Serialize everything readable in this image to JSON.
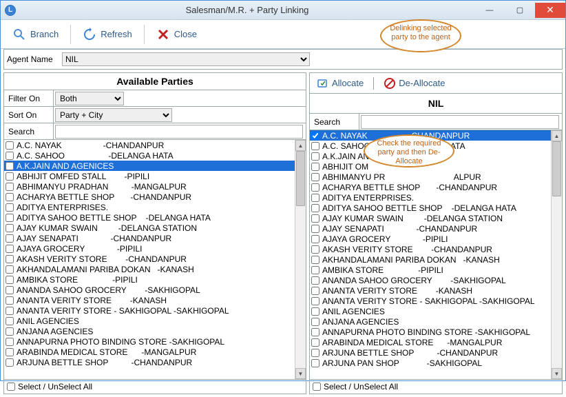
{
  "window": {
    "title": "Salesman/M.R. + Party Linking",
    "min": "—",
    "max": "▢",
    "close": "✕"
  },
  "toolbar": {
    "branch": "Branch",
    "refresh": "Refresh",
    "close": "Close"
  },
  "agent": {
    "label": "Agent Name",
    "value": "NIL"
  },
  "left": {
    "header": "Available Parties",
    "filterLabel": "Filter On",
    "filterValue": "Both",
    "sortLabel": "Sort On",
    "sortValue": "Party + City",
    "searchLabel": "Search",
    "items": [
      {
        "text": "A.C. NAYAK                  -CHANDANPUR",
        "checked": false,
        "selected": false
      },
      {
        "text": "A.C. SAHOO                   -DELANGA HATA",
        "checked": false,
        "selected": false
      },
      {
        "text": "A.K.JAIN AND AGENICES",
        "checked": false,
        "selected": true
      },
      {
        "text": "ABHIJIT OMFED STALL        -PIPILI",
        "checked": false,
        "selected": false
      },
      {
        "text": "ABHIMANYU PRADHAN          -MANGALPUR",
        "checked": false,
        "selected": false
      },
      {
        "text": "ACHARYA BETTLE SHOP       -CHANDANPUR",
        "checked": false,
        "selected": false
      },
      {
        "text": "ADITYA ENTERPRISES.",
        "checked": false,
        "selected": false
      },
      {
        "text": "ADITYA SAHOO BETTLE SHOP    -DELANGA HATA",
        "checked": false,
        "selected": false
      },
      {
        "text": "AJAY KUMAR SWAIN         -DELANGA STATION",
        "checked": false,
        "selected": false
      },
      {
        "text": "AJAY SENAPATI              -CHANDANPUR",
        "checked": false,
        "selected": false
      },
      {
        "text": "AJAYA GROCERY              -PIPILI",
        "checked": false,
        "selected": false
      },
      {
        "text": "AKASH VERITY STORE        -CHANDANPUR",
        "checked": false,
        "selected": false
      },
      {
        "text": "AKHANDALAMANI PARIBA DOKAN   -KANASH",
        "checked": false,
        "selected": false
      },
      {
        "text": "AMBIKA STORE               -PIPILI",
        "checked": false,
        "selected": false
      },
      {
        "text": "ANANDA SAHOO GROCERY        -SAKHIGOPAL",
        "checked": false,
        "selected": false
      },
      {
        "text": "ANANTA VERITY STORE        -KANASH",
        "checked": false,
        "selected": false
      },
      {
        "text": "ANANTA VERITY STORE - SAKHIGOPAL -SAKHIGOPAL",
        "checked": false,
        "selected": false
      },
      {
        "text": "ANIL AGENCIES",
        "checked": false,
        "selected": false
      },
      {
        "text": "ANJANA AGENCIES",
        "checked": false,
        "selected": false
      },
      {
        "text": "ANNAPURNA PHOTO BINDING STORE -SAKHIGOPAL",
        "checked": false,
        "selected": false
      },
      {
        "text": "ARABINDA MEDICAL STORE      -MANGALPUR",
        "checked": false,
        "selected": false
      },
      {
        "text": "ARJUNA BETTLE SHOP          -CHANDANPUR",
        "checked": false,
        "selected": false
      }
    ],
    "footer": "Select / UnSelect All"
  },
  "right": {
    "allocate": "Allocate",
    "deallocate": "De-Allocate",
    "agentName": "NIL",
    "searchLabel": "Search",
    "items": [
      {
        "text": "A.C. NAYAK                  -CHANDANPUR",
        "checked": true,
        "selected": true
      },
      {
        "text": "A.C. SAHOO                                   ATA",
        "checked": false,
        "selected": false
      },
      {
        "text": "A.K.JAIN AN",
        "checked": false,
        "selected": false
      },
      {
        "text": "ABHIJIT OM",
        "checked": false,
        "selected": false
      },
      {
        "text": "ABHIMANYU PR                              ALPUR",
        "checked": false,
        "selected": false
      },
      {
        "text": "ACHARYA BETTLE SHOP       -CHANDANPUR",
        "checked": false,
        "selected": false
      },
      {
        "text": "ADITYA ENTERPRISES.",
        "checked": false,
        "selected": false
      },
      {
        "text": "ADITYA SAHOO BETTLE SHOP    -DELANGA HATA",
        "checked": false,
        "selected": false
      },
      {
        "text": "AJAY KUMAR SWAIN         -DELANGA STATION",
        "checked": false,
        "selected": false
      },
      {
        "text": "AJAY SENAPATI              -CHANDANPUR",
        "checked": false,
        "selected": false
      },
      {
        "text": "AJAYA GROCERY              -PIPILI",
        "checked": false,
        "selected": false
      },
      {
        "text": "AKASH VERITY STORE        -CHANDANPUR",
        "checked": false,
        "selected": false
      },
      {
        "text": "AKHANDALAMANI PARIBA DOKAN   -KANASH",
        "checked": false,
        "selected": false
      },
      {
        "text": "AMBIKA STORE               -PIPILI",
        "checked": false,
        "selected": false
      },
      {
        "text": "ANANDA SAHOO GROCERY        -SAKHIGOPAL",
        "checked": false,
        "selected": false
      },
      {
        "text": "ANANTA VERITY STORE        -KANASH",
        "checked": false,
        "selected": false
      },
      {
        "text": "ANANTA VERITY STORE - SAKHIGOPAL -SAKHIGOPAL",
        "checked": false,
        "selected": false
      },
      {
        "text": "ANIL AGENCIES",
        "checked": false,
        "selected": false
      },
      {
        "text": "ANJANA AGENCIES",
        "checked": false,
        "selected": false
      },
      {
        "text": "ANNAPURNA PHOTO BINDING STORE -SAKHIGOPAL",
        "checked": false,
        "selected": false
      },
      {
        "text": "ARABINDA MEDICAL STORE      -MANGALPUR",
        "checked": false,
        "selected": false
      },
      {
        "text": "ARJUNA BETTLE SHOP          -CHANDANPUR",
        "checked": false,
        "selected": false
      },
      {
        "text": "ARJUNA PAN SHOP            -SAKHIGOPAL",
        "checked": false,
        "selected": false
      }
    ],
    "footer": "Select / UnSelect All"
  },
  "callouts": {
    "c1": "Delinking selected party to the agent",
    "c2": "Check the required party and then De-Allocate"
  },
  "colors": {
    "selected_bg": "#1e6fd8",
    "accent": "#2a5a8a"
  }
}
